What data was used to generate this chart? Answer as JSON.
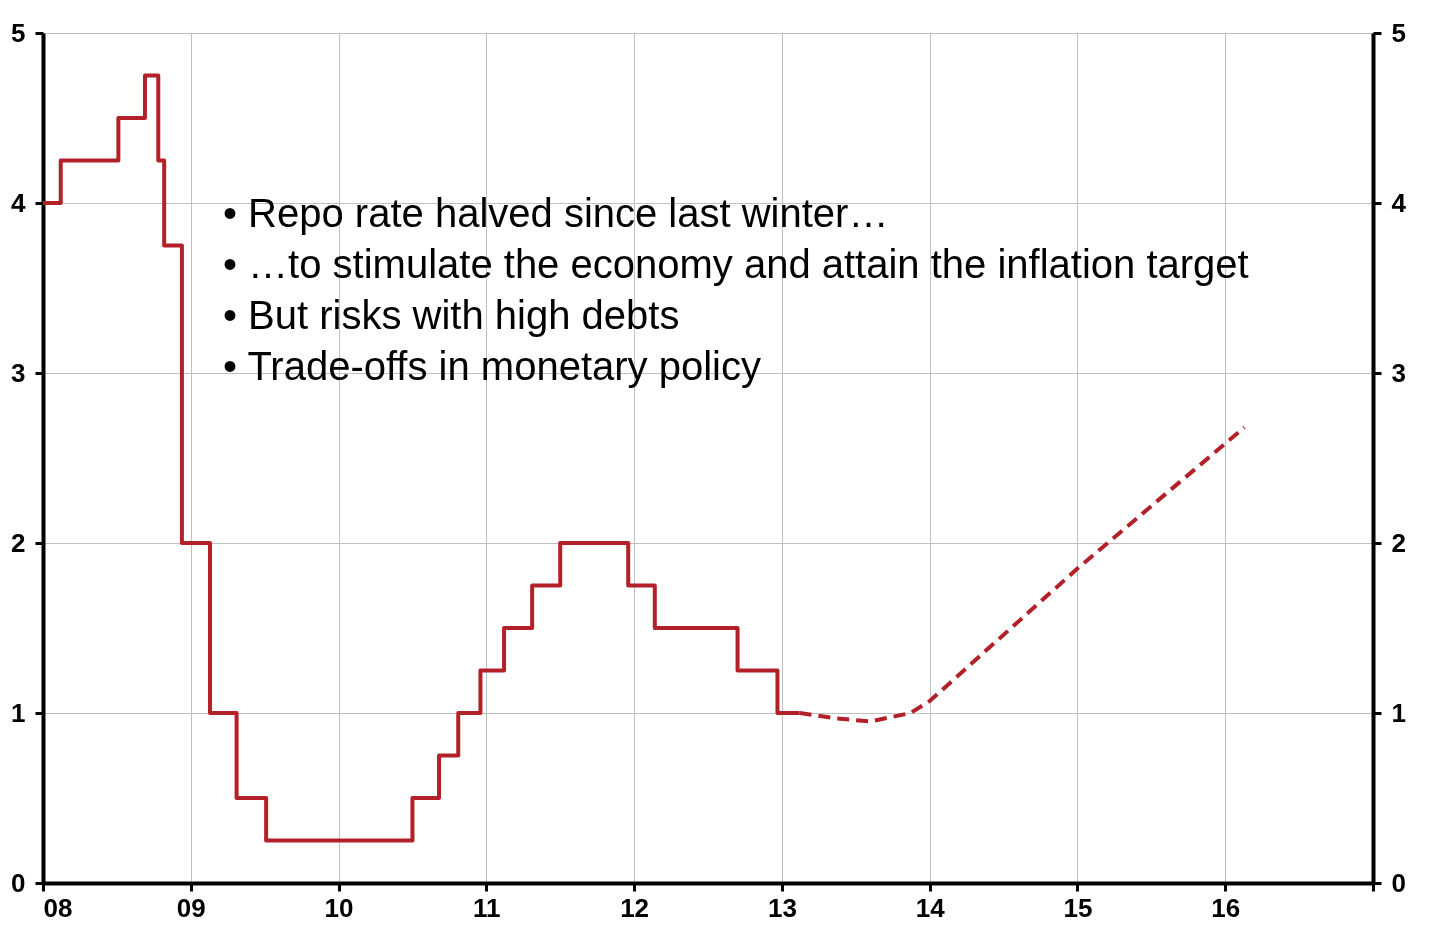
{
  "chart_data": {
    "type": "step",
    "xlim": [
      2008,
      2017
    ],
    "xticks": [
      {
        "value": 2008,
        "label": "08"
      },
      {
        "value": 2009,
        "label": "09"
      },
      {
        "value": 2010,
        "label": "10"
      },
      {
        "value": 2011,
        "label": "11"
      },
      {
        "value": 2012,
        "label": "12"
      },
      {
        "value": 2013,
        "label": "13"
      },
      {
        "value": 2014,
        "label": "14"
      },
      {
        "value": 2015,
        "label": "15"
      },
      {
        "value": 2016,
        "label": "16"
      },
      {
        "value": 2017,
        "label": null
      }
    ],
    "ylim": [
      0,
      5
    ],
    "yticks": [
      0,
      1,
      2,
      3,
      4,
      5
    ],
    "y2lim": [
      0,
      5
    ],
    "y2ticks": [
      0,
      1,
      2,
      3,
      4,
      5
    ],
    "grid": true,
    "series": [
      {
        "color": "#b22028",
        "line_style": "solid",
        "x": [
          2008.0,
          2008.12,
          2008.51,
          2008.69,
          2008.78,
          2008.82,
          2008.94,
          2009.13,
          2009.31,
          2009.51,
          2010.5,
          2010.68,
          2010.81,
          2010.96,
          2011.12,
          2011.31,
          2011.5,
          2011.96,
          2012.14,
          2012.7,
          2012.97,
          2013.12
        ],
        "values": [
          4.0,
          4.25,
          4.5,
          4.75,
          4.25,
          3.75,
          2.0,
          1.0,
          0.5,
          0.25,
          0.5,
          0.75,
          1.0,
          1.25,
          1.5,
          1.75,
          2.0,
          1.75,
          1.5,
          1.25,
          1.0,
          1.0
        ]
      },
      {
        "type": "line",
        "color": "#b22028",
        "line_style": "dashed",
        "x": [
          2013.12,
          2013.35,
          2013.6,
          2013.87,
          2014.0,
          2015.0,
          2016.13
        ],
        "values": [
          1.0,
          0.97,
          0.95,
          1.0,
          1.07,
          1.85,
          2.68
        ]
      }
    ],
    "annotations": [
      "•     Repo rate halved since last winter…",
      "•     …to stimulate the economy and attain the inflation target",
      "•     But risks with high debts",
      "•     Trade-offs in monetary policy"
    ]
  }
}
